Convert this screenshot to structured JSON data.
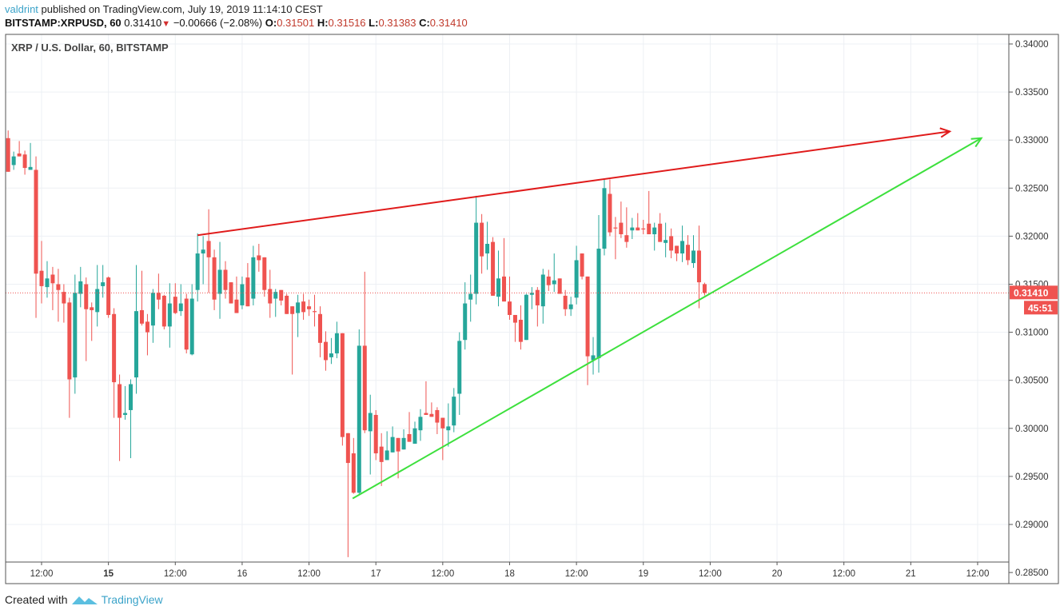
{
  "header": {
    "user": "valdrint",
    "published_text": "published on TradingView.com, July 19, 2019 11:14:10 CEST",
    "symbol": "BITSTAMP:XRPUSD, 60",
    "last": "0.31410",
    "change": "−0.00666 (−2.08%)",
    "o_label": "O:",
    "o": "0.31501",
    "h_label": "H:",
    "h": "0.31516",
    "l_label": "L:",
    "l": "0.31383",
    "c_label": "C:",
    "c": "0.31410",
    "direction_icon": "triangle-down"
  },
  "legend": "XRP / U.S. Dollar, 60, BITSTAMP",
  "footer": {
    "created_with": "Created with",
    "brand": "TradingView"
  },
  "colors": {
    "up": "#26a69a",
    "down": "#ef5350",
    "resistance": "#e01b1b",
    "support": "#3de03d",
    "price_line": "#ef5350",
    "grid": "#edf0f4"
  },
  "chart_data": {
    "type": "candlestick",
    "title": "XRP / U.S. Dollar, 60, BITSTAMP",
    "interval": "60",
    "first_candle_time": "2019-07-14 06:00",
    "ylim": [
      0.2835,
      0.3415
    ],
    "xlim": [
      "2019-07-14 05:00",
      "2019-07-21 17:00"
    ],
    "grid": true,
    "y_ticks": [
      "0.34000",
      "0.33500",
      "0.33000",
      "0.32500",
      "0.32000",
      "0.31500",
      "0.31000",
      "0.30500",
      "0.30000",
      "0.29500",
      "0.29000",
      "0.28500"
    ],
    "x_ticks": [
      {
        "time": "2019-07-14 12:00",
        "label": "12:00",
        "bold": false
      },
      {
        "time": "2019-07-15 00:00",
        "label": "15",
        "bold": true
      },
      {
        "time": "2019-07-15 12:00",
        "label": "12:00",
        "bold": false
      },
      {
        "time": "2019-07-16 00:00",
        "label": "16",
        "bold": false
      },
      {
        "time": "2019-07-16 12:00",
        "label": "12:00",
        "bold": false
      },
      {
        "time": "2019-07-17 00:00",
        "label": "17",
        "bold": false
      },
      {
        "time": "2019-07-17 12:00",
        "label": "12:00",
        "bold": false
      },
      {
        "time": "2019-07-18 00:00",
        "label": "18",
        "bold": false
      },
      {
        "time": "2019-07-18 12:00",
        "label": "12:00",
        "bold": false
      },
      {
        "time": "2019-07-19 00:00",
        "label": "19",
        "bold": false
      },
      {
        "time": "2019-07-19 12:00",
        "label": "12:00",
        "bold": false
      },
      {
        "time": "2019-07-20 00:00",
        "label": "20",
        "bold": false
      },
      {
        "time": "2019-07-20 12:00",
        "label": "12:00",
        "bold": false
      },
      {
        "time": "2019-07-21 00:00",
        "label": "21",
        "bold": false
      },
      {
        "time": "2019-07-21 12:00",
        "label": "12:00",
        "bold": false
      }
    ],
    "current_price": {
      "value": 0.3141,
      "label": "0.31410",
      "countdown": "45:51"
    },
    "trendlines": [
      {
        "kind": "resistance",
        "from": [
          "2019-07-15 16:00",
          0.3201
        ],
        "to": [
          "2019-07-21 07:00",
          0.3309
        ],
        "arrow": true
      },
      {
        "kind": "support",
        "from": [
          "2019-07-16 19:50",
          0.2927
        ],
        "to": [
          "2019-07-21 12:40",
          0.3302
        ],
        "arrow": true
      }
    ],
    "ohlc": [
      [
        0.3302,
        0.331,
        0.3267,
        0.3267
      ],
      [
        0.3274,
        0.3288,
        0.3269,
        0.3283
      ],
      [
        0.3286,
        0.3299,
        0.3283,
        0.3283
      ],
      [
        0.3285,
        0.3289,
        0.3264,
        0.3271
      ],
      [
        0.3269,
        0.3297,
        0.3269,
        0.3272
      ],
      [
        0.3269,
        0.3283,
        0.3115,
        0.3161
      ],
      [
        0.3164,
        0.3195,
        0.313,
        0.3148
      ],
      [
        0.3147,
        0.3174,
        0.3136,
        0.3156
      ],
      [
        0.316,
        0.3168,
        0.3123,
        0.3151
      ],
      [
        0.315,
        0.3166,
        0.3111,
        0.3144
      ],
      [
        0.3142,
        0.315,
        0.311,
        0.313
      ],
      [
        0.3131,
        0.3136,
        0.3011,
        0.3051
      ],
      [
        0.3053,
        0.316,
        0.3036,
        0.3141
      ],
      [
        0.314,
        0.3168,
        0.3126,
        0.3153
      ],
      [
        0.315,
        0.3157,
        0.307,
        0.3124
      ],
      [
        0.3126,
        0.3131,
        0.3091,
        0.3123
      ],
      [
        0.3121,
        0.317,
        0.3106,
        0.3145
      ],
      [
        0.3148,
        0.317,
        0.3136,
        0.3152
      ],
      [
        0.3157,
        0.3158,
        0.3115,
        0.3118
      ],
      [
        0.3119,
        0.3125,
        0.3011,
        0.3048
      ],
      [
        0.3046,
        0.3056,
        0.2966,
        0.3011
      ],
      [
        0.3014,
        0.3044,
        0.3009,
        0.3016
      ],
      [
        0.3019,
        0.3051,
        0.2969,
        0.3046
      ],
      [
        0.3053,
        0.317,
        0.3036,
        0.3122
      ],
      [
        0.3123,
        0.3164,
        0.3107,
        0.3109
      ],
      [
        0.3111,
        0.3119,
        0.3076,
        0.31
      ],
      [
        0.3107,
        0.3145,
        0.3089,
        0.3141
      ],
      [
        0.3141,
        0.3161,
        0.3124,
        0.3134
      ],
      [
        0.3138,
        0.3139,
        0.3103,
        0.3106
      ],
      [
        0.3106,
        0.3151,
        0.3084,
        0.313
      ],
      [
        0.3137,
        0.3151,
        0.3119,
        0.312
      ],
      [
        0.3122,
        0.315,
        0.3117,
        0.313
      ],
      [
        0.3135,
        0.314,
        0.3078,
        0.3082
      ],
      [
        0.3077,
        0.315,
        0.3076,
        0.3135
      ],
      [
        0.3144,
        0.3203,
        0.3132,
        0.3182
      ],
      [
        0.3182,
        0.32,
        0.315,
        0.3186
      ],
      [
        0.3195,
        0.3228,
        0.3141,
        0.3178
      ],
      [
        0.3178,
        0.3186,
        0.3123,
        0.3134
      ],
      [
        0.314,
        0.3194,
        0.3114,
        0.3165
      ],
      [
        0.3165,
        0.3174,
        0.3135,
        0.3144
      ],
      [
        0.3152,
        0.3152,
        0.313,
        0.313
      ],
      [
        0.3134,
        0.3158,
        0.312,
        0.312
      ],
      [
        0.3128,
        0.3158,
        0.3124,
        0.315
      ],
      [
        0.3157,
        0.3172,
        0.3127,
        0.3127
      ],
      [
        0.3135,
        0.319,
        0.3128,
        0.3178
      ],
      [
        0.318,
        0.3192,
        0.3163,
        0.3175
      ],
      [
        0.3178,
        0.3178,
        0.3137,
        0.3144
      ],
      [
        0.3145,
        0.3165,
        0.3115,
        0.313
      ],
      [
        0.3135,
        0.3145,
        0.3116,
        0.3142
      ],
      [
        0.3144,
        0.3144,
        0.3128,
        0.3133
      ],
      [
        0.3138,
        0.314,
        0.3119,
        0.3119
      ],
      [
        0.3127,
        0.3127,
        0.3056,
        0.3119
      ],
      [
        0.312,
        0.3139,
        0.3095,
        0.3131
      ],
      [
        0.3132,
        0.314,
        0.3113,
        0.3121
      ],
      [
        0.3127,
        0.3134,
        0.3117,
        0.3124
      ],
      [
        0.3122,
        0.3139,
        0.3106,
        0.3121
      ],
      [
        0.3119,
        0.3127,
        0.3074,
        0.3089
      ],
      [
        0.309,
        0.3101,
        0.306,
        0.3071
      ],
      [
        0.3074,
        0.3094,
        0.3067,
        0.3078
      ],
      [
        0.3078,
        0.3111,
        0.3073,
        0.3099
      ],
      [
        0.3099,
        0.3099,
        0.2982,
        0.2991
      ],
      [
        0.2995,
        0.2995,
        0.2866,
        0.2964
      ],
      [
        0.2974,
        0.299,
        0.2932,
        0.2933
      ],
      [
        0.2933,
        0.3103,
        0.2932,
        0.3086
      ],
      [
        0.3086,
        0.3163,
        0.2995,
        0.2998
      ],
      [
        0.2997,
        0.3035,
        0.2952,
        0.3016
      ],
      [
        0.3014,
        0.3019,
        0.2967,
        0.2974
      ],
      [
        0.2981,
        0.2995,
        0.294,
        0.2965
      ],
      [
        0.2967,
        0.2997,
        0.2967,
        0.2977
      ],
      [
        0.2975,
        0.3002,
        0.2975,
        0.2991
      ],
      [
        0.299,
        0.299,
        0.2948,
        0.2976
      ],
      [
        0.2978,
        0.2999,
        0.2978,
        0.299
      ],
      [
        0.2994,
        0.3017,
        0.2986,
        0.2986
      ],
      [
        0.2984,
        0.3007,
        0.2984,
        0.3
      ],
      [
        0.2998,
        0.302,
        0.2987,
        0.3012
      ],
      [
        0.3016,
        0.3049,
        0.3014,
        0.3014
      ],
      [
        0.3015,
        0.3027,
        0.3012,
        0.3012
      ],
      [
        0.3019,
        0.3022,
        0.2994,
        0.3006
      ],
      [
        0.3011,
        0.3011,
        0.2967,
        0.3
      ],
      [
        0.2998,
        0.3026,
        0.2981,
        0.3002
      ],
      [
        0.3003,
        0.3042,
        0.2996,
        0.3033
      ],
      [
        0.3036,
        0.31,
        0.3014,
        0.3091
      ],
      [
        0.3092,
        0.3152,
        0.3082,
        0.313
      ],
      [
        0.3134,
        0.316,
        0.3111,
        0.314
      ],
      [
        0.314,
        0.3242,
        0.3129,
        0.3214
      ],
      [
        0.3214,
        0.3223,
        0.3161,
        0.3179
      ],
      [
        0.3182,
        0.3215,
        0.3165,
        0.3192
      ],
      [
        0.3194,
        0.3199,
        0.3138,
        0.3138
      ],
      [
        0.3137,
        0.3185,
        0.3127,
        0.3156
      ],
      [
        0.3158,
        0.3198,
        0.3132,
        0.3132
      ],
      [
        0.3132,
        0.3158,
        0.3113,
        0.3118
      ],
      [
        0.3118,
        0.3118,
        0.309,
        0.311
      ],
      [
        0.3113,
        0.3128,
        0.3082,
        0.309
      ],
      [
        0.3092,
        0.314,
        0.3092,
        0.3139
      ],
      [
        0.3139,
        0.3147,
        0.3124,
        0.3141
      ],
      [
        0.3144,
        0.3147,
        0.3106,
        0.3128
      ],
      [
        0.3127,
        0.3166,
        0.3109,
        0.316
      ],
      [
        0.3158,
        0.3165,
        0.3143,
        0.3149
      ],
      [
        0.315,
        0.3182,
        0.3142,
        0.3154
      ],
      [
        0.3156,
        0.3156,
        0.314,
        0.314
      ],
      [
        0.3138,
        0.3144,
        0.3117,
        0.3124
      ],
      [
        0.3124,
        0.3137,
        0.3117,
        0.3129
      ],
      [
        0.3136,
        0.319,
        0.3129,
        0.3175
      ],
      [
        0.3182,
        0.3182,
        0.3155,
        0.3158
      ],
      [
        0.3158,
        0.3158,
        0.3045,
        0.3075
      ],
      [
        0.3071,
        0.3095,
        0.3056,
        0.3076
      ],
      [
        0.3073,
        0.3222,
        0.3058,
        0.3187
      ],
      [
        0.3187,
        0.3259,
        0.318,
        0.325
      ],
      [
        0.3244,
        0.3259,
        0.32,
        0.3204
      ],
      [
        0.3209,
        0.322,
        0.3176,
        0.3208
      ],
      [
        0.3214,
        0.3236,
        0.3198,
        0.3202
      ],
      [
        0.3201,
        0.323,
        0.3188,
        0.3194
      ],
      [
        0.3206,
        0.3219,
        0.3197,
        0.3209
      ],
      [
        0.3209,
        0.3224,
        0.3206,
        0.3206
      ],
      [
        0.3208,
        0.3217,
        0.3202,
        0.3207
      ],
      [
        0.3213,
        0.3247,
        0.3202,
        0.3202
      ],
      [
        0.3202,
        0.3214,
        0.3185,
        0.3209
      ],
      [
        0.3213,
        0.3224,
        0.3194,
        0.3194
      ],
      [
        0.3193,
        0.3214,
        0.3178,
        0.3196
      ],
      [
        0.32,
        0.3208,
        0.3177,
        0.3185
      ],
      [
        0.319,
        0.319,
        0.3174,
        0.3182
      ],
      [
        0.3182,
        0.3211,
        0.3173,
        0.3195
      ],
      [
        0.3191,
        0.3201,
        0.317,
        0.3175
      ],
      [
        0.3172,
        0.3201,
        0.3167,
        0.3185
      ],
      [
        0.3185,
        0.3211,
        0.3125,
        0.3152
      ],
      [
        0.31501,
        0.31516,
        0.31383,
        0.3141
      ]
    ]
  }
}
